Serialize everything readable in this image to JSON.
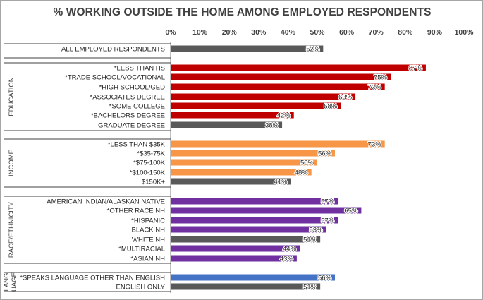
{
  "chart_data": {
    "type": "bar",
    "orientation": "horizontal",
    "title": "% WORKING OUTSIDE THE HOME AMONG EMPLOYED RESPONDENTS",
    "xlim": [
      0,
      100
    ],
    "x_ticks": [
      "0%",
      "10%",
      "20%",
      "30%",
      "40%",
      "50%",
      "60%",
      "70%",
      "80%",
      "90%",
      "100%"
    ],
    "x_axis_position": "top",
    "grid": false,
    "value_suffix": "%",
    "groups": [
      {
        "label": "",
        "rows": [
          {
            "label": "ALL EMPLOYED RESPONDENTS",
            "value": 52,
            "color": "#595959"
          }
        ]
      },
      {
        "label": "EDUCATION",
        "rows": [
          {
            "label": "*LESS THAN HS",
            "value": 87,
            "color": "#c00000"
          },
          {
            "label": "*TRADE SCHOOL/VOCATIONAL",
            "value": 75,
            "color": "#c00000"
          },
          {
            "label": "*HIGH SCHOOL/GED",
            "value": 73,
            "color": "#c00000"
          },
          {
            "label": "*ASSOCIATES DEGREE",
            "value": 63,
            "color": "#c00000"
          },
          {
            "label": "*SOME COLLEGE",
            "value": 58,
            "color": "#c00000"
          },
          {
            "label": "*BACHELORS DEGREE",
            "value": 42,
            "color": "#c00000"
          },
          {
            "label": "GRADUATE DEGREE",
            "value": 38,
            "color": "#595959"
          }
        ]
      },
      {
        "label": "INCOME",
        "rows": [
          {
            "label": "*LESS THAN $35K",
            "value": 73,
            "color": "#f79646"
          },
          {
            "label": "*$35-75K",
            "value": 56,
            "color": "#f79646"
          },
          {
            "label": "*$75-100K",
            "value": 50,
            "color": "#f79646"
          },
          {
            "label": "*$100-150K",
            "value": 48,
            "color": "#f79646"
          },
          {
            "label": "$150K+",
            "value": 41,
            "color": "#595959"
          }
        ]
      },
      {
        "label": "RACE/ETHNICITY",
        "rows": [
          {
            "label": "AMERICAN INDIAN/ALASKAN NATIVE",
            "value": 57,
            "color": "#7030a0"
          },
          {
            "label": "*OTHER RACE NH",
            "value": 65,
            "color": "#7030a0"
          },
          {
            "label": "*HISPANIC",
            "value": 57,
            "color": "#7030a0"
          },
          {
            "label": "BLACK NH",
            "value": 53,
            "color": "#7030a0"
          },
          {
            "label": "WHITE NH",
            "value": 51,
            "color": "#595959"
          },
          {
            "label": "*MULTIRACIAL",
            "value": 44,
            "color": "#7030a0"
          },
          {
            "label": "*ASIAN NH",
            "value": 43,
            "color": "#7030a0"
          }
        ]
      },
      {
        "label": "LANGUAGE",
        "rows": [
          {
            "label": "*SPEAKS LANGUAGE OTHER THAN ENGLISH",
            "value": 56,
            "color": "#4472c4"
          },
          {
            "label": "ENGLISH ONLY",
            "value": 51,
            "color": "#595959"
          }
        ]
      }
    ]
  }
}
